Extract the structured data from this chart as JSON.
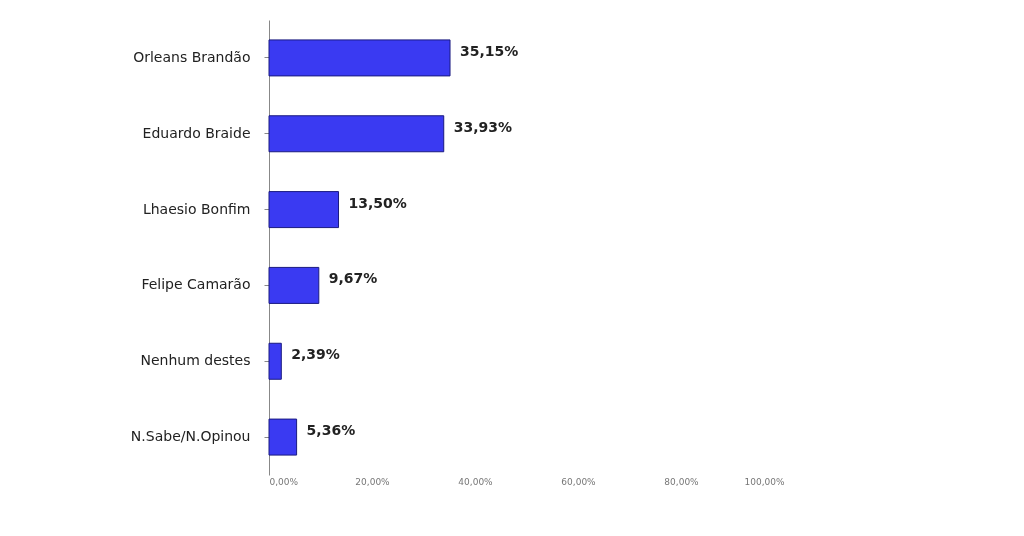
{
  "chart_data": {
    "type": "bar",
    "orientation": "horizontal",
    "categories": [
      "Orleans Brandão",
      "Eduardo Braide",
      "Lhaesio Bonfim",
      "Felipe Camarão",
      "Nenhum destes",
      "N.Sabe/N.Opinou"
    ],
    "values": [
      35.15,
      33.93,
      13.5,
      9.67,
      2.39,
      5.36
    ],
    "value_labels": [
      "35,15%",
      "33,93%",
      "13,50%",
      "9,67%",
      "2,39%",
      "5,36%"
    ],
    "color": "#3a3af2",
    "xlim": [
      0,
      100
    ],
    "xticks": [
      {
        "value": 0,
        "label": "0,00%"
      },
      {
        "value": 20,
        "label": "20,00%"
      },
      {
        "value": 40,
        "label": "40,00%"
      },
      {
        "value": 60,
        "label": "60,00%"
      },
      {
        "value": 80,
        "label": "80,00%"
      },
      {
        "value": 100,
        "label": "100,00%"
      }
    ],
    "grid": false
  }
}
